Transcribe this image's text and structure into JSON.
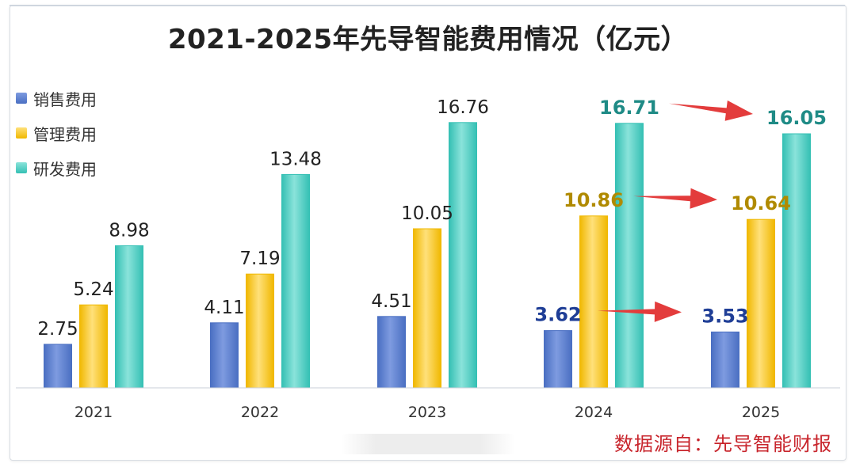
{
  "chart_data": {
    "type": "bar",
    "title": "2021-2025年先导智能费用情况（亿元）",
    "categories": [
      "2021",
      "2022",
      "2023",
      "2024",
      "2025"
    ],
    "series": [
      {
        "name": "销售费用",
        "values": [
          2.75,
          4.11,
          4.51,
          3.62,
          3.53
        ],
        "color": "#4a6fc2",
        "color_light": "#7e9be0",
        "emph_label_color": "#1f3e96"
      },
      {
        "name": "管理费用",
        "values": [
          5.24,
          7.19,
          10.05,
          10.86,
          10.64
        ],
        "color": "#f0b800",
        "color_light": "#ffe07a",
        "emph_label_color": "#b08a00"
      },
      {
        "name": "研发费用",
        "values": [
          8.98,
          13.48,
          16.76,
          16.71,
          16.05
        ],
        "color": "#35c0b4",
        "color_light": "#8ae3da",
        "emph_label_color": "#1f8b86"
      }
    ],
    "data_labels": [
      [
        "2.75",
        "4.11",
        "4.51",
        "3.62",
        "3.53"
      ],
      [
        "5.24",
        "7.19",
        "10.05",
        "10.86",
        "10.64"
      ],
      [
        "8.98",
        "13.48",
        "16.76",
        "16.71",
        "16.05"
      ]
    ],
    "emphasized_categories": [
      "2024",
      "2025"
    ],
    "ylim": [
      0,
      18
    ],
    "grid": false,
    "legend_position": "left",
    "annotation_color": "#e33c3c",
    "annotations": [
      {
        "type": "arrow",
        "from": {
          "category": "2024",
          "series": 0
        },
        "to": {
          "category": "2025",
          "series": 0
        }
      },
      {
        "type": "arrow",
        "from": {
          "category": "2024",
          "series": 1
        },
        "to": {
          "category": "2025",
          "series": 1
        }
      },
      {
        "type": "arrow",
        "from": {
          "category": "2024",
          "series": 2
        },
        "to": {
          "category": "2025",
          "series": 2
        }
      }
    ]
  },
  "source_text": "数据源自：先导智能财报"
}
